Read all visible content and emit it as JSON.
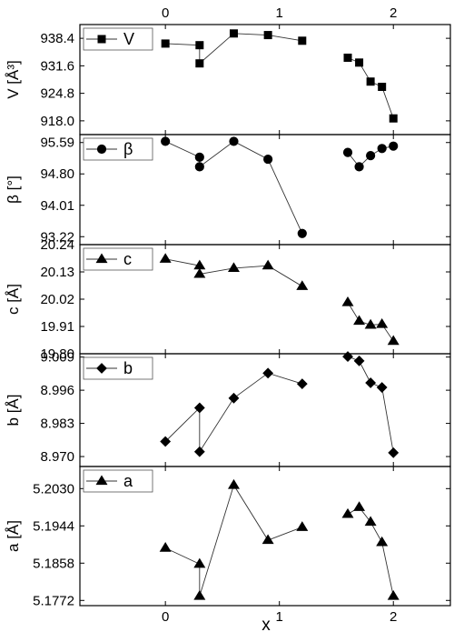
{
  "figure": {
    "xlabel": "x",
    "x_ticks": [
      0,
      1,
      2
    ],
    "x_tick_labels": [
      "0",
      "1",
      "2"
    ],
    "xlim": [
      -0.75,
      2.5
    ]
  },
  "chart_data": [
    {
      "type": "line",
      "ylabel": "V [Å³]",
      "legend": "V",
      "marker": "square",
      "ylim": [
        914.6,
        941.8
      ],
      "y_ticks": [
        918.0,
        924.8,
        931.6,
        938.4
      ],
      "y_tick_labels": [
        "918.0",
        "924.8",
        "931.6",
        "938.4"
      ],
      "segments": [
        {
          "x": [
            0,
            0.3,
            0.3,
            0.6,
            0.9,
            1.2
          ],
          "y": [
            937.1,
            936.7,
            932.2,
            939.6,
            939.2,
            937.8
          ]
        },
        {
          "x": [
            1.6,
            1.7,
            1.8,
            1.9,
            2.0
          ],
          "y": [
            933.6,
            932.4,
            927.7,
            926.4,
            918.6
          ]
        }
      ]
    },
    {
      "type": "line",
      "ylabel": "β [°]",
      "legend": "β",
      "marker": "circle",
      "ylim": [
        93.02,
        95.79
      ],
      "y_ticks": [
        93.22,
        94.01,
        94.8,
        95.59
      ],
      "y_tick_labels": [
        "93.22",
        "94.01",
        "94.80",
        "95.59"
      ],
      "segments": [
        {
          "x": [
            0,
            0.3,
            0.3,
            0.6,
            0.9,
            1.2
          ],
          "y": [
            95.62,
            95.22,
            94.98,
            95.62,
            95.17,
            93.3
          ]
        },
        {
          "x": [
            1.6,
            1.7,
            1.8,
            1.9,
            2.0
          ],
          "y": [
            95.34,
            94.98,
            95.26,
            95.44,
            95.5
          ]
        }
      ]
    },
    {
      "type": "line",
      "ylabel": "c [Å]",
      "legend": "c",
      "marker": "triangle",
      "ylim": [
        19.8,
        20.24
      ],
      "y_ticks": [
        19.8,
        19.91,
        20.02,
        20.13,
        20.24
      ],
      "y_tick_labels": [
        "19.80",
        "19.91",
        "20.02",
        "20.13",
        "20.24"
      ],
      "segments": [
        {
          "x": [
            0,
            0.3,
            0.3,
            0.6,
            0.9,
            1.2
          ],
          "y": [
            20.182,
            20.155,
            20.121,
            20.145,
            20.155,
            20.072
          ]
        },
        {
          "x": [
            1.6,
            1.7,
            1.8,
            1.9,
            2.0
          ],
          "y": [
            20.007,
            19.932,
            19.916,
            19.919,
            19.851
          ]
        }
      ]
    },
    {
      "type": "line",
      "ylabel": "b [Å]",
      "legend": "b",
      "marker": "diamond",
      "ylim": [
        8.9661,
        9.0103
      ],
      "y_ticks": [
        8.97,
        8.983,
        8.996,
        9.009
      ],
      "y_tick_labels": [
        "8.970",
        "8.983",
        "8.996",
        "9.009"
      ],
      "segments": [
        {
          "x": [
            0,
            0.3,
            0.3,
            0.6,
            0.9,
            1.2
          ],
          "y": [
            8.9759,
            8.9891,
            8.9719,
            8.9929,
            9.0027,
            8.9985
          ]
        },
        {
          "x": [
            1.6,
            1.7,
            1.8,
            1.9,
            2.0
          ],
          "y": [
            9.0092,
            9.0075,
            8.9989,
            8.9971,
            8.9715
          ]
        }
      ]
    },
    {
      "type": "line",
      "ylabel": "a [Å]",
      "legend": "a",
      "marker": "triangle",
      "ylim": [
        5.176,
        5.2081
      ],
      "y_ticks": [
        5.1772,
        5.1858,
        5.1944,
        5.203
      ],
      "y_tick_labels": [
        "5.1772",
        "5.1858",
        "5.1944",
        "5.2030"
      ],
      "segments": [
        {
          "x": [
            0,
            0.3,
            0.3,
            0.6,
            0.9,
            1.2
          ],
          "y": [
            5.1893,
            5.1856,
            5.1782,
            5.2038,
            5.1911,
            5.1941
          ]
        },
        {
          "x": [
            1.6,
            1.7,
            1.8,
            1.9,
            2.0
          ],
          "y": [
            5.1971,
            5.1987,
            5.1953,
            5.1906,
            5.1782
          ]
        }
      ]
    }
  ]
}
